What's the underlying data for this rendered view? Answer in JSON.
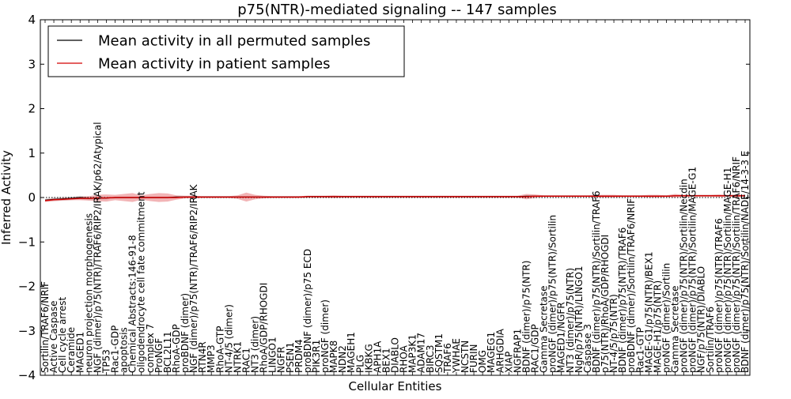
{
  "chart_data": {
    "type": "line",
    "title": "p75(NTR)-mediated signaling -- 147 samples",
    "xlabel": "Cellular Entities",
    "ylabel": "Inferred Activity",
    "ylim": [
      -4,
      4
    ],
    "yticks": [
      "−4",
      "−3",
      "−2",
      "−1",
      "0",
      "1",
      "2",
      "3",
      "4"
    ],
    "ytick_values": [
      -4,
      -3,
      -2,
      -1,
      0,
      1,
      2,
      3,
      4
    ],
    "grid": false,
    "legend_position": "top-left",
    "series": [
      {
        "name": "Mean activity in all permuted samples",
        "color": "#000000"
      },
      {
        "name": "Mean activity in patient samples",
        "color": "#d40000"
      }
    ],
    "categories": [
      "Sortilin/TRAF6/NRIF",
      "Active Caspase",
      "Cell cycle arrest",
      "Ceramide",
      "MAGED1",
      "neuron projection morphogenesis",
      "NGF (dimer)/p75(NTR)/TRAF6/RIP2/IRAK/p62/Atypical",
      "TP53",
      "Rac1-GDP",
      "apoptosis",
      "Chemical Abstracts:146-91-8",
      "oligodendrocyte cell fate commitment",
      "complex 7",
      "ProNGF",
      "BCL2L11",
      "RhoA-GDP",
      "proBDNF (dimer)",
      "NGF (dimer)/p75(NTR)/TRAF6/RIP2/IRAK",
      "RTN4R",
      "MMP3",
      "RhoA-GTP",
      "NT-4/5 (dimer)",
      "NTRK1",
      "RAC1",
      "NT3 (dimer)",
      "RhoA/GDP/RHOGDI",
      "LINGO1",
      "NGFR",
      "PSEN1",
      "PRDM4",
      "proBDNF (dimer)/p75 ECD",
      "PIK3R1",
      "proNGF (dimer)",
      "MAPK8",
      "NDN2",
      "MAGEH1",
      "PLG",
      "IKBKG",
      "APH1A",
      "BEX1",
      "DIABLO",
      "RHOA",
      "MAP3K1",
      "ADAM17",
      "BIRC3",
      "SQSTM1",
      "TRAF6",
      "YWHAE",
      "NCSTN",
      "FURIN",
      "OMG",
      "MAGEG1",
      "ARHGDIA",
      "XIAP",
      "NGFRAP1",
      "BDNF (dimer)/p75(NTR)",
      "RAC1/GDP",
      "Gamma Secretase",
      "proNGF (dimer)/p75(NTR)/Sortilin",
      "MAGED1/NGFR",
      "NT3 (dimer)/p75(NTR)",
      "NgR/p75(NTR)/LINGO1",
      "Caspase 3",
      "BDNF (dimer)/p75(NTR)/Sortilin/TRAF6",
      "p75(NTR)/RhoA/GDP/RHOGDI",
      "NT-4/5/p75(NTR)",
      "BDNF (dimer)/p75(NTR)/TRAF6",
      "proBDNF (dimer)/Sortilin/TRAF6/NRIF",
      "Rac1-GTP",
      "MAGE-G1/p75(NTR)/BEX1",
      "MAGE-H1/p75(NTR)",
      "proNGF (dimer)/Sortilin",
      "Gamma Secretase",
      "proNGF (dimer)/p75(NTR)/Sortilin/Necdin",
      "proNGF (dimer)/p75(NTR)/Sortilin/MAGE-G1",
      "NGF/p75(NTR)/DIABLO",
      "Sortilin/TRAF6",
      "proNGF (dimer)/p75(NTR)/TRAF6",
      "proNGF (dimer)/p75(NTR)/Sortilin/MAGE-H1",
      "proNGF (dimer)/p75(NTR)/Sortilin/TRAF6/NRIF",
      "BDNF (dimer)/p75(NTR)/Sortilin/NADE/14-3-3 E"
    ],
    "permuted_values": [
      -0.06,
      -0.04,
      -0.03,
      -0.02,
      0.0,
      -0.02,
      -0.01,
      -0.01,
      0.0,
      0.0,
      0.0,
      0.0,
      0.0,
      0.0,
      0.0,
      0.01,
      0.01,
      0.01,
      0.01,
      0.01,
      0.01,
      0.01,
      0.01,
      0.01,
      0.01,
      0.01,
      0.01,
      0.01,
      0.01,
      0.01,
      0.02,
      0.02,
      0.02,
      0.02,
      0.02,
      0.02,
      0.02,
      0.02,
      0.02,
      0.02,
      0.02,
      0.02,
      0.02,
      0.02,
      0.02,
      0.02,
      0.02,
      0.02,
      0.02,
      0.02,
      0.02,
      0.02,
      0.02,
      0.02,
      0.02,
      0.03,
      0.03,
      0.03,
      0.03,
      0.03,
      0.03,
      0.03,
      0.03,
      0.03,
      0.03,
      0.03,
      0.03,
      0.03,
      0.03,
      0.03,
      0.03,
      0.03,
      0.04,
      0.04,
      0.04,
      0.04,
      0.04,
      0.04,
      0.04,
      0.04,
      0.04
    ],
    "patient_values": [
      -0.07,
      -0.05,
      -0.04,
      -0.03,
      -0.02,
      -0.02,
      -0.01,
      -0.01,
      0.0,
      0.0,
      0.0,
      0.0,
      0.0,
      0.0,
      0.0,
      0.0,
      0.01,
      0.01,
      0.01,
      0.01,
      0.01,
      0.01,
      0.01,
      0.01,
      0.01,
      0.01,
      0.01,
      0.01,
      0.01,
      0.01,
      0.02,
      0.02,
      0.02,
      0.02,
      0.02,
      0.02,
      0.02,
      0.02,
      0.02,
      0.02,
      0.02,
      0.02,
      0.02,
      0.02,
      0.02,
      0.02,
      0.02,
      0.02,
      0.02,
      0.02,
      0.02,
      0.02,
      0.02,
      0.02,
      0.02,
      0.02,
      0.03,
      0.03,
      0.03,
      0.03,
      0.03,
      0.03,
      0.03,
      0.03,
      0.03,
      0.03,
      0.03,
      0.03,
      0.03,
      0.03,
      0.03,
      0.03,
      0.04,
      0.04,
      0.04,
      0.04,
      0.04,
      0.04,
      0.04,
      0.04,
      0.04
    ],
    "patient_spread": [
      0.03,
      0.03,
      0.03,
      0.03,
      0.04,
      0.05,
      0.07,
      0.08,
      0.06,
      0.08,
      0.1,
      0.05,
      0.08,
      0.1,
      0.09,
      0.05,
      0.03,
      0.03,
      0.02,
      0.02,
      0.02,
      0.02,
      0.04,
      0.1,
      0.05,
      0.03,
      0.02,
      0.02,
      0.02,
      0.02,
      0.02,
      0.02,
      0.02,
      0.03,
      0.02,
      0.02,
      0.02,
      0.02,
      0.02,
      0.02,
      0.02,
      0.02,
      0.02,
      0.02,
      0.02,
      0.02,
      0.02,
      0.02,
      0.02,
      0.02,
      0.02,
      0.02,
      0.02,
      0.02,
      0.02,
      0.06,
      0.04,
      0.02,
      0.02,
      0.02,
      0.02,
      0.02,
      0.02,
      0.03,
      0.03,
      0.03,
      0.02,
      0.02,
      0.02,
      0.03,
      0.03,
      0.02,
      0.04,
      0.02,
      0.02,
      0.02,
      0.02,
      0.03,
      0.02,
      0.03,
      0.02
    ],
    "permuted_spread": [
      0.03,
      0.04,
      0.04,
      0.04,
      0.04,
      0.04,
      0.04,
      0.03,
      0.02,
      0.02,
      0.02,
      0.02,
      0.02,
      0.02,
      0.02,
      0.02,
      0.02,
      0.02,
      0.02,
      0.02,
      0.02,
      0.02,
      0.02,
      0.02,
      0.02,
      0.02,
      0.02,
      0.02,
      0.02,
      0.02,
      0.02,
      0.02,
      0.02,
      0.02,
      0.02,
      0.02,
      0.02,
      0.02,
      0.02,
      0.02,
      0.02,
      0.02,
      0.02,
      0.02,
      0.02,
      0.02,
      0.02,
      0.02,
      0.02,
      0.02,
      0.02,
      0.02,
      0.02,
      0.02,
      0.02,
      0.02,
      0.02,
      0.02,
      0.02,
      0.02,
      0.02,
      0.02,
      0.02,
      0.02,
      0.02,
      0.02,
      0.02,
      0.02,
      0.02,
      0.02,
      0.02,
      0.02,
      0.02,
      0.02,
      0.02,
      0.02,
      0.02,
      0.02,
      0.02,
      0.02,
      0.02
    ]
  }
}
